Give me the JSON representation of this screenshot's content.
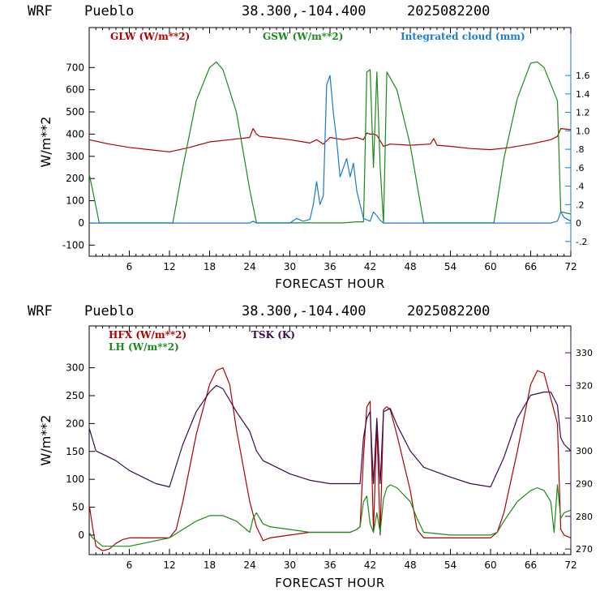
{
  "chart_data": [
    {
      "type": "line",
      "header": {
        "model": "WRF",
        "station": "Pueblo",
        "coords": "38.300,-104.400",
        "init": "2025082200"
      },
      "xlabel": "FORECAST HOUR",
      "ylabel": "W/m**2",
      "xlim": [
        0,
        72
      ],
      "ylim": [
        -150,
        880
      ],
      "y2lim": [
        -0.36,
        2.12
      ],
      "xticks": [
        6,
        12,
        18,
        24,
        30,
        36,
        42,
        48,
        54,
        60,
        66,
        72
      ],
      "yticks": [
        -100,
        0,
        100,
        200,
        300,
        400,
        500,
        600,
        700
      ],
      "y2ticks": [
        -0.2,
        0,
        0.2,
        0.4,
        0.6,
        0.8,
        1.0,
        1.2,
        1.4,
        1.6
      ],
      "y2ticklabels": [
        "-.2",
        "0",
        ".2",
        ".4",
        ".6",
        ".8",
        "1.0",
        "1.2",
        "1.4",
        "1.6"
      ],
      "series": [
        {
          "name": "GLW (W/m**2)",
          "color": "#b00000",
          "axis": "left",
          "x": [
            0,
            3,
            6,
            9,
            12,
            15,
            18,
            21,
            24,
            24.5,
            25,
            25.5,
            27,
            30,
            32,
            33,
            34,
            35,
            36,
            38,
            40,
            41,
            41.5,
            42,
            42.5,
            43,
            44,
            45,
            48,
            51,
            51.5,
            52,
            54,
            57,
            60,
            63,
            66,
            69,
            70,
            70.5,
            72
          ],
          "y": [
            375,
            355,
            340,
            330,
            320,
            340,
            365,
            375,
            385,
            425,
            400,
            390,
            385,
            375,
            365,
            360,
            375,
            355,
            385,
            375,
            385,
            375,
            405,
            400,
            400,
            395,
            345,
            355,
            350,
            355,
            380,
            350,
            345,
            335,
            330,
            340,
            355,
            375,
            390,
            425,
            420
          ]
        },
        {
          "name": "GSW (W/m**2)",
          "color": "#1a8a1a",
          "axis": "left",
          "x": [
            0,
            0.5,
            1.5,
            12.5,
            14,
            16,
            18,
            19,
            20,
            22,
            24,
            25,
            30,
            36,
            38,
            40,
            41,
            41.2,
            41.5,
            42,
            42.5,
            43,
            43.5,
            44,
            44.5,
            46,
            48,
            50,
            60,
            60.5,
            62,
            64,
            66,
            67,
            68,
            70,
            70.5,
            72
          ],
          "y": [
            220,
            150,
            0,
            0,
            250,
            550,
            700,
            725,
            690,
            500,
            150,
            0,
            0,
            0,
            0,
            5,
            5,
            250,
            680,
            690,
            250,
            680,
            250,
            0,
            680,
            600,
            350,
            0,
            0,
            0,
            290,
            560,
            720,
            725,
            700,
            550,
            50,
            40
          ]
        },
        {
          "name": "Integrated cloud (mm)",
          "color": "#1a7ad0",
          "axis": "right",
          "x": [
            0,
            24,
            24.5,
            25,
            30,
            31,
            32,
            33,
            33.5,
            34,
            34.5,
            35,
            35.5,
            36,
            36.5,
            37,
            37.5,
            38,
            38.5,
            39,
            39.5,
            40,
            40.5,
            41,
            42,
            42.5,
            43,
            43.5,
            44,
            48,
            69,
            70,
            70.5,
            71,
            72
          ],
          "y": [
            0,
            0,
            0.02,
            0,
            0,
            0.05,
            0.02,
            0.04,
            0.2,
            0.45,
            0.2,
            0.3,
            1.5,
            1.6,
            1.2,
            0.9,
            0.5,
            0.6,
            0.7,
            0.5,
            0.65,
            0.35,
            0.2,
            0.05,
            0.02,
            0.12,
            0.08,
            0.03,
            0,
            0,
            0,
            0.02,
            0.12,
            0.06,
            0.02
          ]
        }
      ]
    },
    {
      "type": "line",
      "header": {
        "model": "WRF",
        "station": "Pueblo",
        "coords": "38.300,-104.400",
        "init": "2025082200"
      },
      "xlabel": "FORECAST HOUR",
      "ylabel": "W/m**2",
      "xlim": [
        0,
        72
      ],
      "ylim": [
        -35,
        375
      ],
      "y2lim": [
        268.3,
        338.2
      ],
      "xticks": [
        6,
        12,
        18,
        24,
        30,
        36,
        42,
        48,
        54,
        60,
        66,
        72
      ],
      "yticks": [
        0,
        50,
        100,
        150,
        200,
        250,
        300
      ],
      "y2ticks": [
        270,
        280,
        290,
        300,
        310,
        320,
        330
      ],
      "series": [
        {
          "name": "HFX (W/m**2)",
          "color": "#b00000",
          "axis": "left",
          "x": [
            0,
            0.5,
            1,
            2,
            3,
            4,
            5,
            6,
            8,
            12,
            13,
            14,
            16,
            18,
            19,
            20,
            21,
            22,
            24,
            25,
            26,
            27,
            30,
            33,
            36,
            39,
            40,
            40.5,
            41,
            41.5,
            42,
            42.5,
            43,
            43.5,
            44,
            44.5,
            45,
            46,
            48,
            49,
            50,
            54,
            57,
            60,
            61,
            62,
            64,
            66,
            67,
            68,
            69,
            70,
            70.5,
            71,
            72
          ],
          "y": [
            55,
            15,
            -20,
            -28,
            -25,
            -15,
            -8,
            -5,
            -5,
            -5,
            10,
            60,
            180,
            270,
            295,
            300,
            270,
            190,
            60,
            15,
            -10,
            -5,
            0,
            5,
            5,
            5,
            10,
            15,
            140,
            230,
            240,
            5,
            200,
            0,
            225,
            230,
            225,
            180,
            80,
            10,
            -5,
            -5,
            -5,
            -5,
            5,
            40,
            150,
            270,
            295,
            290,
            245,
            200,
            10,
            0,
            -5
          ]
        },
        {
          "name": "LH  (W/m**2)",
          "color": "#1a8a1a",
          "axis": "left",
          "x": [
            0,
            0.5,
            1,
            2,
            4,
            6,
            12,
            14,
            16,
            18,
            20,
            22,
            24,
            24.5,
            25,
            26,
            27,
            30,
            33,
            36,
            39,
            40,
            40.5,
            41,
            41.5,
            42,
            42.5,
            43,
            43.5,
            44,
            44.5,
            45,
            46,
            48,
            49,
            50,
            54,
            57,
            60,
            61,
            62,
            64,
            66,
            67,
            68,
            69,
            69.5,
            70,
            70.5,
            71,
            72
          ],
          "y": [
            5,
            -5,
            -10,
            -20,
            -20,
            -20,
            -5,
            10,
            25,
            35,
            35,
            25,
            5,
            30,
            40,
            20,
            15,
            10,
            5,
            5,
            5,
            10,
            15,
            60,
            70,
            20,
            5,
            40,
            5,
            65,
            85,
            90,
            85,
            60,
            30,
            5,
            0,
            0,
            0,
            5,
            25,
            60,
            80,
            85,
            80,
            60,
            5,
            90,
            30,
            40,
            45
          ]
        },
        {
          "name": "TSK (K)",
          "color": "#3a0a50",
          "axis": "right",
          "x": [
            0,
            1,
            2,
            4,
            6,
            8,
            10,
            12,
            14,
            16,
            18,
            19,
            20,
            22,
            24,
            25,
            26,
            27,
            30,
            33,
            36,
            39,
            40,
            40.5,
            41,
            41.5,
            42,
            42.5,
            43,
            43.5,
            44,
            45,
            46,
            48,
            50,
            54,
            57,
            60,
            62,
            64,
            66,
            68,
            69,
            70,
            70.5,
            71,
            72
          ],
          "y": [
            307,
            300,
            299,
            297,
            294,
            292,
            290,
            289,
            302,
            312,
            318,
            320,
            319,
            312,
            306,
            300,
            297,
            296,
            293,
            291,
            290,
            290,
            290,
            290,
            304,
            310,
            312,
            290,
            310,
            290,
            312,
            313,
            308,
            300,
            295,
            292,
            290,
            289,
            298,
            310,
            317,
            318,
            318,
            314,
            304,
            302,
            300
          ]
        }
      ]
    }
  ]
}
